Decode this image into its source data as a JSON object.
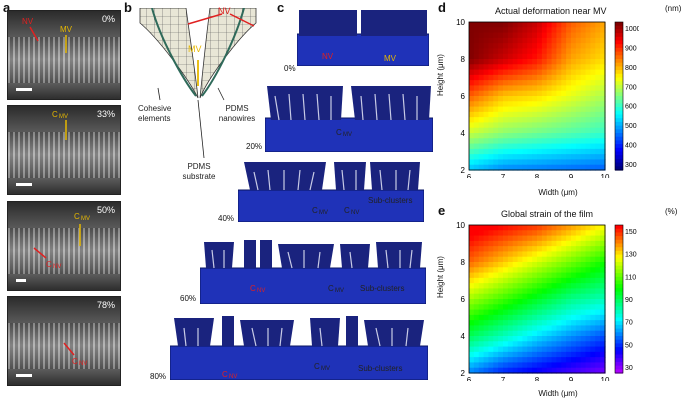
{
  "panels": {
    "a": {
      "letter": "a",
      "images": [
        {
          "percent": "0%",
          "labels": [
            "NV",
            "MV"
          ]
        },
        {
          "percent": "33%",
          "labels": [
            "C",
            "MV"
          ]
        },
        {
          "percent": "50%",
          "labels": [
            "C",
            "MV",
            "C",
            "NV"
          ]
        },
        {
          "percent": "78%",
          "labels": [
            "C",
            "NV"
          ]
        }
      ]
    },
    "b": {
      "letter": "b",
      "nv": "NV",
      "mv": "MV",
      "cohesive": "Cohesive elements",
      "nanowires": "PDMS nanowires",
      "substrate": "PDMS substrate"
    },
    "c": {
      "letter": "c",
      "steps": [
        {
          "percent": "0%",
          "labels": [
            "NV",
            "MV"
          ]
        },
        {
          "percent": "20%",
          "labels": [
            "C",
            "MV"
          ]
        },
        {
          "percent": "40%",
          "labels": [
            "C",
            "MV",
            "C",
            "NV",
            "Sub-clusters"
          ]
        },
        {
          "percent": "60%",
          "labels": [
            "C",
            "NV",
            "C",
            "MV",
            "Sub-clusters"
          ]
        },
        {
          "percent": "80%",
          "labels": [
            "C",
            "NV",
            "C",
            "MV",
            "Sub-clusters"
          ]
        }
      ]
    },
    "d": {
      "letter": "d",
      "title": "Actual deformation near MV",
      "xlabel": "Width (μm)",
      "ylabel": "Height (μm)",
      "unit": "(nm)",
      "xticks": [
        "6",
        "7",
        "8",
        "9",
        "10"
      ],
      "yticks": [
        "10",
        "8",
        "6",
        "4",
        "2"
      ],
      "cbar_ticks": [
        "1000",
        "900",
        "800",
        "700",
        "600",
        "500",
        "400",
        "300"
      ]
    },
    "e": {
      "letter": "e",
      "title": "Global strain of the film",
      "xlabel": "Width (μm)",
      "ylabel": "Height (μm)",
      "unit": "(%)",
      "xticks": [
        "6",
        "7",
        "8",
        "9",
        "10"
      ],
      "yticks": [
        "10",
        "8",
        "6",
        "4",
        "2"
      ],
      "cbar_ticks": [
        "150",
        "130",
        "110",
        "90",
        "70",
        "50",
        "30"
      ]
    }
  },
  "chart_data": [
    {
      "type": "heatmap",
      "title": "Actual deformation near MV",
      "xlabel": "Width (μm)",
      "ylabel": "Height (μm)",
      "xlim": [
        6,
        10
      ],
      "ylim": [
        2,
        10
      ],
      "colorbar_range": [
        300,
        1000
      ],
      "colorbar_unit": "nm",
      "x": [
        6,
        7,
        8,
        9,
        10
      ],
      "y": [
        10,
        8,
        6,
        4,
        2
      ],
      "z": [
        [
          1000,
          1000,
          950,
          850,
          800
        ],
        [
          1000,
          950,
          900,
          800,
          760
        ],
        [
          850,
          780,
          760,
          720,
          680
        ],
        [
          700,
          660,
          640,
          620,
          600
        ],
        [
          520,
          480,
          470,
          460,
          450
        ]
      ]
    },
    {
      "type": "heatmap",
      "title": "Global strain of the film",
      "xlabel": "Width (μm)",
      "ylabel": "Height (μm)",
      "xlim": [
        6,
        10
      ],
      "ylim": [
        2,
        10
      ],
      "colorbar_range": [
        30,
        150
      ],
      "colorbar_unit": "%",
      "x": [
        6,
        7,
        8,
        9,
        10
      ],
      "y": [
        10,
        8,
        6,
        4,
        2
      ],
      "z": [
        [
          155,
          150,
          145,
          135,
          125
        ],
        [
          140,
          130,
          120,
          110,
          100
        ],
        [
          115,
          105,
          95,
          85,
          80
        ],
        [
          90,
          80,
          70,
          62,
          55
        ],
        [
          60,
          50,
          45,
          40,
          35
        ]
      ]
    }
  ]
}
